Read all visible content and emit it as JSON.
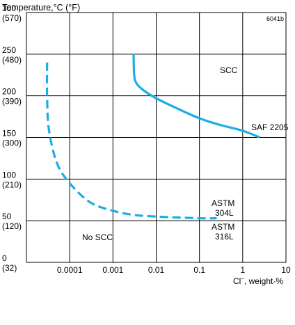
{
  "chart_data": {
    "type": "line",
    "title": "Temperature,°C (°F)",
    "figure_code": "6041b",
    "xlabel_main": "Cl",
    "xlabel_super": "−",
    "xlabel_rest": ", weight-%",
    "x_scale": "log",
    "xlim": [
      1e-05,
      10
    ],
    "ylim": [
      0,
      300
    ],
    "x_ticks": [
      {
        "value": 0.0001,
        "label": "0.0001"
      },
      {
        "value": 0.001,
        "label": "0.001"
      },
      {
        "value": 0.01,
        "label": "0.01"
      },
      {
        "value": 0.1,
        "label": "0.1"
      },
      {
        "value": 1,
        "label": "1"
      },
      {
        "value": 10,
        "label": "10"
      }
    ],
    "y_ticks": [
      {
        "value": 300,
        "c": "300",
        "f": "(570)"
      },
      {
        "value": 250,
        "c": "250",
        "f": "(480)"
      },
      {
        "value": 200,
        "c": "200",
        "f": "(390)"
      },
      {
        "value": 150,
        "c": "150",
        "f": "(300)"
      },
      {
        "value": 100,
        "c": "100",
        "f": "(210)"
      },
      {
        "value": 50,
        "c": "50",
        "f": "(120)"
      },
      {
        "value": 0,
        "c": "0",
        "f": "(32)"
      }
    ],
    "grid": true,
    "color": "#1aaee5",
    "series": [
      {
        "name": "SAF 2205",
        "style": "solid",
        "x": [
          0.003,
          0.0031,
          0.0035,
          0.005,
          0.01,
          0.03,
          0.1,
          0.3,
          1,
          2.5
        ],
        "y": [
          250,
          225,
          215,
          207,
          197,
          185,
          173,
          165,
          158,
          150
        ]
      },
      {
        "name": "ASTM 304L / 316L",
        "style": "dashed",
        "x": [
          3e-05,
          3e-05,
          3.3e-05,
          5e-05,
          0.0001,
          0.0003,
          0.001,
          0.003,
          0.01,
          0.1,
          0.25
        ],
        "y": [
          240,
          200,
          160,
          120,
          95,
          72,
          62,
          57,
          55,
          53,
          53
        ]
      }
    ],
    "annotations": {
      "scc": "SCC",
      "saf": "SAF 2205",
      "astm304_a": "ASTM",
      "astm304_b": "304L",
      "astm316_a": "ASTM",
      "astm316_b": "316L",
      "noscc": "No SCC"
    }
  }
}
